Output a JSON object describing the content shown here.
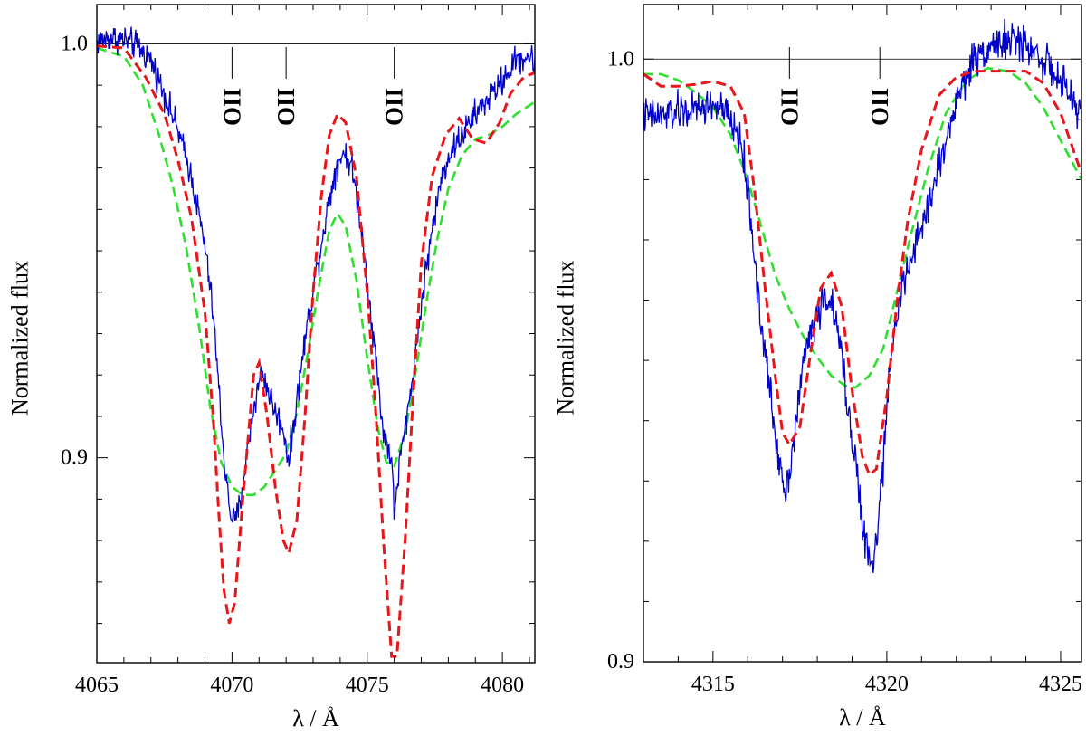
{
  "chart_data": [
    {
      "type": "line",
      "xlabel": "λ / Å",
      "ylabel": "Normalized flux",
      "xlim": [
        4065,
        4081.2
      ],
      "ylim": [
        0.8505,
        1.0095
      ],
      "x_ticks": [
        4065,
        4070,
        4075,
        4080
      ],
      "x_minor_step": 1,
      "y_ticks": [
        {
          "value": 0.9,
          "label": "0.9"
        },
        {
          "value": 1.0,
          "label": "1.0"
        }
      ],
      "y_minor_step": 0.01,
      "continuum": 1.0,
      "line_markers": [
        {
          "label": "OII",
          "x": 4070.0
        },
        {
          "label": "OII",
          "x": 4072.0
        },
        {
          "label": "OII",
          "x": 4076.0
        }
      ],
      "series": [
        {
          "name": "Observed spectrum",
          "style": "observed",
          "points": [
            [
              4065.0,
              1.0005
            ],
            [
              4065.5,
              1.0015
            ],
            [
              4066.0,
              1.001
            ],
            [
              4066.5,
              0.9995
            ],
            [
              4067.0,
              0.996
            ],
            [
              4067.5,
              0.988
            ],
            [
              4068.0,
              0.979
            ],
            [
              4068.5,
              0.968
            ],
            [
              4069.0,
              0.951
            ],
            [
              4069.3,
              0.935
            ],
            [
              4069.5,
              0.918
            ],
            [
              4069.7,
              0.9
            ],
            [
              4069.9,
              0.888
            ],
            [
              4070.1,
              0.884
            ],
            [
              4070.3,
              0.889
            ],
            [
              4070.5,
              0.899
            ],
            [
              4070.8,
              0.912
            ],
            [
              4071.1,
              0.921
            ],
            [
              4071.3,
              0.917
            ],
            [
              4071.6,
              0.911
            ],
            [
              4071.9,
              0.907
            ],
            [
              4072.1,
              0.899
            ],
            [
              4072.3,
              0.909
            ],
            [
              4072.6,
              0.924
            ],
            [
              4072.9,
              0.937
            ],
            [
              4073.2,
              0.948
            ],
            [
              4073.5,
              0.959
            ],
            [
              4073.8,
              0.969
            ],
            [
              4074.1,
              0.974
            ],
            [
              4074.4,
              0.971
            ],
            [
              4074.7,
              0.96
            ],
            [
              4075.0,
              0.943
            ],
            [
              4075.3,
              0.925
            ],
            [
              4075.6,
              0.906
            ],
            [
              4075.9,
              0.9
            ],
            [
              4076.0,
              0.886
            ],
            [
              4076.2,
              0.899
            ],
            [
              4076.5,
              0.911
            ],
            [
              4076.8,
              0.926
            ],
            [
              4077.1,
              0.942
            ],
            [
              4077.4,
              0.955
            ],
            [
              4077.7,
              0.966
            ],
            [
              4078.0,
              0.973
            ],
            [
              4078.5,
              0.978
            ],
            [
              4079.0,
              0.983
            ],
            [
              4079.5,
              0.987
            ],
            [
              4080.0,
              0.991
            ],
            [
              4080.5,
              0.996
            ],
            [
              4081.0,
              0.997
            ],
            [
              4081.2,
              0.995
            ]
          ],
          "noise": 0.0025
        },
        {
          "name": "Model (red, dashed)",
          "style": "model-a",
          "points": [
            [
              4065.0,
              0.9995
            ],
            [
              4066.0,
              0.999
            ],
            [
              4066.8,
              0.992
            ],
            [
              4067.5,
              0.983
            ],
            [
              4068.0,
              0.972
            ],
            [
              4068.5,
              0.958
            ],
            [
              4069.0,
              0.935
            ],
            [
              4069.3,
              0.91
            ],
            [
              4069.5,
              0.888
            ],
            [
              4069.7,
              0.868
            ],
            [
              4069.9,
              0.86
            ],
            [
              4070.1,
              0.865
            ],
            [
              4070.4,
              0.89
            ],
            [
              4070.8,
              0.92
            ],
            [
              4071.0,
              0.923
            ],
            [
              4071.3,
              0.91
            ],
            [
              4071.6,
              0.893
            ],
            [
              4071.9,
              0.88
            ],
            [
              4072.1,
              0.877
            ],
            [
              4072.4,
              0.885
            ],
            [
              4072.7,
              0.91
            ],
            [
              4073.0,
              0.94
            ],
            [
              4073.3,
              0.963
            ],
            [
              4073.6,
              0.978
            ],
            [
              4073.9,
              0.983
            ],
            [
              4074.2,
              0.981
            ],
            [
              4074.6,
              0.968
            ],
            [
              4075.0,
              0.94
            ],
            [
              4075.3,
              0.913
            ],
            [
              4075.6,
              0.88
            ],
            [
              4075.9,
              0.852
            ],
            [
              4076.1,
              0.852
            ],
            [
              4076.4,
              0.88
            ],
            [
              4076.7,
              0.915
            ],
            [
              4077.0,
              0.947
            ],
            [
              4077.4,
              0.968
            ],
            [
              4077.9,
              0.978
            ],
            [
              4078.4,
              0.982
            ],
            [
              4078.9,
              0.977
            ],
            [
              4079.4,
              0.976
            ],
            [
              4079.9,
              0.981
            ],
            [
              4080.3,
              0.988
            ],
            [
              4080.8,
              0.992
            ],
            [
              4081.2,
              0.993
            ]
          ]
        },
        {
          "name": "Model (green, dashed)",
          "style": "model-b",
          "points": [
            [
              4065.0,
              0.999
            ],
            [
              4066.0,
              0.997
            ],
            [
              4066.7,
              0.99
            ],
            [
              4067.3,
              0.978
            ],
            [
              4067.8,
              0.966
            ],
            [
              4068.3,
              0.951
            ],
            [
              4068.8,
              0.931
            ],
            [
              4069.2,
              0.912
            ],
            [
              4069.6,
              0.899
            ],
            [
              4070.0,
              0.893
            ],
            [
              4070.4,
              0.891
            ],
            [
              4070.8,
              0.891
            ],
            [
              4071.2,
              0.893
            ],
            [
              4071.6,
              0.897
            ],
            [
              4072.0,
              0.901
            ],
            [
              4072.4,
              0.911
            ],
            [
              4072.8,
              0.925
            ],
            [
              4073.2,
              0.941
            ],
            [
              4073.6,
              0.955
            ],
            [
              4073.9,
              0.959
            ],
            [
              4074.2,
              0.956
            ],
            [
              4074.6,
              0.943
            ],
            [
              4075.0,
              0.924
            ],
            [
              4075.4,
              0.907
            ],
            [
              4075.7,
              0.899
            ],
            [
              4076.0,
              0.898
            ],
            [
              4076.4,
              0.906
            ],
            [
              4076.8,
              0.921
            ],
            [
              4077.2,
              0.938
            ],
            [
              4077.6,
              0.953
            ],
            [
              4078.0,
              0.965
            ],
            [
              4078.5,
              0.973
            ],
            [
              4079.0,
              0.977
            ],
            [
              4079.5,
              0.978
            ],
            [
              4080.0,
              0.98
            ],
            [
              4080.5,
              0.983
            ],
            [
              4081.2,
              0.986
            ]
          ]
        }
      ]
    },
    {
      "type": "line",
      "xlabel": "λ / Å",
      "ylabel": "Normalized flux",
      "xlim": [
        4313.0,
        4325.6
      ],
      "ylim": [
        0.9,
        1.00905
      ],
      "x_ticks": [
        4315,
        4320,
        4325
      ],
      "x_minor_step": 1,
      "y_ticks": [
        {
          "value": 0.9,
          "label": "0.9"
        },
        {
          "value": 1.0,
          "label": "1.0"
        }
      ],
      "y_minor_step": 0.01,
      "continuum": 1.0,
      "line_markers": [
        {
          "label": "OII",
          "x": 4317.2
        },
        {
          "label": "OII",
          "x": 4319.8
        }
      ],
      "series": [
        {
          "name": "Observed spectrum",
          "style": "observed",
          "points": [
            [
              4313.0,
              0.9905
            ],
            [
              4313.5,
              0.9905
            ],
            [
              4314.0,
              0.9912
            ],
            [
              4314.5,
              0.9915
            ],
            [
              4315.0,
              0.9925
            ],
            [
              4315.4,
              0.9908
            ],
            [
              4315.8,
              0.9865
            ],
            [
              4316.0,
              0.978
            ],
            [
              4316.2,
              0.967
            ],
            [
              4316.4,
              0.955
            ],
            [
              4316.6,
              0.947
            ],
            [
              4316.8,
              0.937
            ],
            [
              4317.0,
              0.931
            ],
            [
              4317.1,
              0.928
            ],
            [
              4317.3,
              0.936
            ],
            [
              4317.5,
              0.945
            ],
            [
              4317.7,
              0.953
            ],
            [
              4317.9,
              0.956
            ],
            [
              4318.1,
              0.959
            ],
            [
              4318.3,
              0.961
            ],
            [
              4318.5,
              0.957
            ],
            [
              4318.7,
              0.951
            ],
            [
              4318.9,
              0.941
            ],
            [
              4319.1,
              0.934
            ],
            [
              4319.3,
              0.922
            ],
            [
              4319.5,
              0.917
            ],
            [
              4319.6,
              0.915
            ],
            [
              4319.8,
              0.926
            ],
            [
              4320.0,
              0.941
            ],
            [
              4320.2,
              0.956
            ],
            [
              4320.5,
              0.963
            ],
            [
              4320.8,
              0.968
            ],
            [
              4321.2,
              0.976
            ],
            [
              4321.6,
              0.984
            ],
            [
              4322.0,
              0.993
            ],
            [
              4322.5,
              1.0
            ],
            [
              4323.0,
              1.0025
            ],
            [
              4323.5,
              1.003
            ],
            [
              4324.0,
              1.0025
            ],
            [
              4324.5,
              1.0
            ],
            [
              4325.0,
              0.996
            ],
            [
              4325.6,
              0.991
            ]
          ],
          "noise": 0.0022
        },
        {
          "name": "Model (red, dashed)",
          "style": "model-a",
          "points": [
            [
              4313.0,
              0.9975
            ],
            [
              4313.5,
              0.9955
            ],
            [
              4314.0,
              0.9955
            ],
            [
              4314.5,
              0.9958
            ],
            [
              4315.0,
              0.9963
            ],
            [
              4315.5,
              0.9955
            ],
            [
              4315.9,
              0.991
            ],
            [
              4316.2,
              0.978
            ],
            [
              4316.5,
              0.962
            ],
            [
              4316.8,
              0.947
            ],
            [
              4317.0,
              0.938
            ],
            [
              4317.2,
              0.936
            ],
            [
              4317.5,
              0.939
            ],
            [
              4317.8,
              0.951
            ],
            [
              4318.1,
              0.962
            ],
            [
              4318.4,
              0.9645
            ],
            [
              4318.7,
              0.959
            ],
            [
              4319.0,
              0.945
            ],
            [
              4319.3,
              0.934
            ],
            [
              4319.5,
              0.931
            ],
            [
              4319.7,
              0.932
            ],
            [
              4320.0,
              0.944
            ],
            [
              4320.3,
              0.96
            ],
            [
              4320.6,
              0.973
            ],
            [
              4321.0,
              0.985
            ],
            [
              4321.5,
              0.994
            ],
            [
              4322.0,
              0.997
            ],
            [
              4322.5,
              0.998
            ],
            [
              4323.0,
              0.998
            ],
            [
              4323.5,
              0.998
            ],
            [
              4324.0,
              0.998
            ],
            [
              4324.5,
              0.996
            ],
            [
              4325.0,
              0.991
            ],
            [
              4325.6,
              0.981
            ]
          ]
        },
        {
          "name": "Model (green, dashed)",
          "style": "model-b",
          "points": [
            [
              4313.0,
              0.9975
            ],
            [
              4313.5,
              0.9975
            ],
            [
              4314.0,
              0.9965
            ],
            [
              4314.5,
              0.9945
            ],
            [
              4315.0,
              0.992
            ],
            [
              4315.5,
              0.9875
            ],
            [
              4316.0,
              0.98
            ],
            [
              4316.5,
              0.97
            ],
            [
              4316.8,
              0.964
            ],
            [
              4317.2,
              0.9585
            ],
            [
              4317.6,
              0.954
            ],
            [
              4318.0,
              0.9505
            ],
            [
              4318.4,
              0.9475
            ],
            [
              4318.8,
              0.9458
            ],
            [
              4319.1,
              0.9455
            ],
            [
              4319.5,
              0.9475
            ],
            [
              4319.9,
              0.952
            ],
            [
              4320.3,
              0.9615
            ],
            [
              4320.7,
              0.971
            ],
            [
              4321.2,
              0.982
            ],
            [
              4321.7,
              0.991
            ],
            [
              4322.3,
              0.9965
            ],
            [
              4322.9,
              0.9985
            ],
            [
              4323.5,
              0.998
            ],
            [
              4324.0,
              0.996
            ],
            [
              4324.5,
              0.992
            ],
            [
              4325.0,
              0.9865
            ],
            [
              4325.6,
              0.98
            ]
          ]
        }
      ]
    }
  ]
}
